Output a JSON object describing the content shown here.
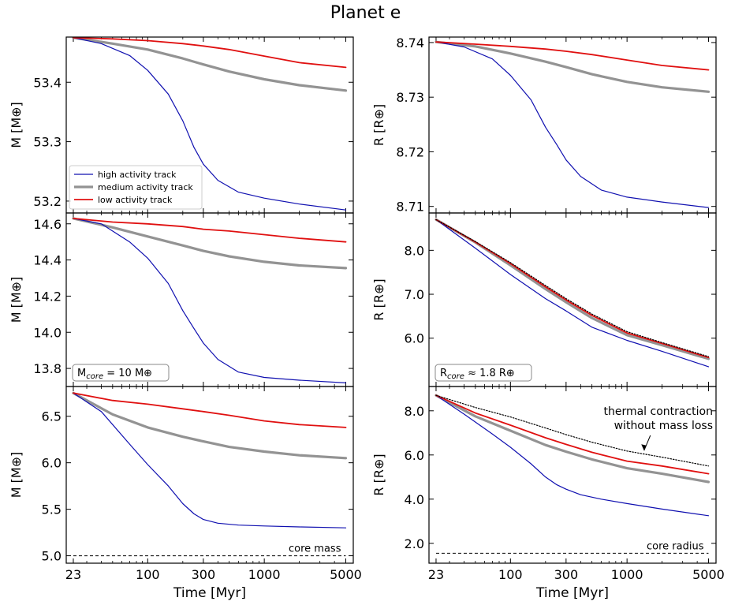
{
  "figure": {
    "title": "Planet e"
  },
  "colors": {
    "high": "#1010b0",
    "medium": "#939393",
    "low": "#e01010",
    "reference": "#000000"
  },
  "chart_data": [
    {
      "id": "mass-total",
      "type": "line",
      "xscale": "log",
      "xlabel": "",
      "ylabel": "M [M⊕]",
      "xlim": [
        20,
        5800
      ],
      "ylim": [
        53.18,
        53.476
      ],
      "xticks": [
        23,
        100,
        300,
        1000,
        5000
      ],
      "xticklabels": [
        "",
        "",
        "",
        "",
        ""
      ],
      "yticks": [
        53.2,
        53.3,
        53.4
      ],
      "yticklabels": [
        "53.2",
        "53.3",
        "53.4"
      ],
      "legend": {
        "placement": "lower-left",
        "entries": [
          "high activity track",
          "medium activity track",
          "low activity track"
        ]
      },
      "series": [
        {
          "name": "high activity track",
          "key": "high",
          "x": [
            23,
            40,
            70,
            100,
            150,
            200,
            250,
            300,
            400,
            600,
            1000,
            2000,
            5000
          ],
          "y": [
            53.475,
            53.465,
            53.445,
            53.42,
            53.38,
            53.335,
            53.29,
            53.262,
            53.235,
            53.215,
            53.205,
            53.195,
            53.185
          ]
        },
        {
          "name": "medium activity track",
          "key": "medium",
          "x": [
            23,
            50,
            100,
            200,
            300,
            500,
            1000,
            2000,
            5000
          ],
          "y": [
            53.475,
            53.465,
            53.455,
            53.44,
            53.43,
            53.418,
            53.405,
            53.395,
            53.386
          ]
        },
        {
          "name": "low activity track",
          "key": "low",
          "x": [
            23,
            50,
            100,
            200,
            300,
            500,
            1000,
            2000,
            5000
          ],
          "y": [
            53.475,
            53.473,
            53.47,
            53.465,
            53.461,
            53.455,
            53.444,
            53.433,
            53.425
          ]
        }
      ]
    },
    {
      "id": "radius-total",
      "type": "line",
      "xscale": "log",
      "xlabel": "",
      "ylabel": "R [R⊕]",
      "xlim": [
        20,
        5800
      ],
      "ylim": [
        8.7088,
        8.741
      ],
      "xticks": [
        23,
        100,
        300,
        1000,
        5000
      ],
      "xticklabels": [
        "",
        "",
        "",
        "",
        ""
      ],
      "yticks": [
        8.71,
        8.72,
        8.73,
        8.74
      ],
      "yticklabels": [
        "8.71",
        "8.72",
        "8.73",
        "8.74"
      ],
      "series": [
        {
          "key": "high",
          "x": [
            23,
            40,
            70,
            100,
            150,
            200,
            250,
            300,
            400,
            600,
            1000,
            2000,
            5000
          ],
          "y": [
            8.7401,
            8.7392,
            8.737,
            8.734,
            8.7295,
            8.7245,
            8.7213,
            8.7185,
            8.7155,
            8.713,
            8.7117,
            8.7108,
            8.7098
          ]
        },
        {
          "key": "medium",
          "x": [
            23,
            50,
            100,
            200,
            300,
            500,
            1000,
            2000,
            5000
          ],
          "y": [
            8.7401,
            8.7393,
            8.738,
            8.7365,
            8.7355,
            8.7342,
            8.7328,
            8.7318,
            8.731
          ]
        },
        {
          "key": "low",
          "x": [
            23,
            50,
            100,
            200,
            300,
            500,
            1000,
            2000,
            5000
          ],
          "y": [
            8.7401,
            8.7397,
            8.7393,
            8.7388,
            8.7384,
            8.7378,
            8.7368,
            8.7358,
            8.735
          ]
        }
      ]
    },
    {
      "id": "mass-10",
      "type": "line",
      "xscale": "log",
      "xlabel": "",
      "ylabel": "M [M⊕]",
      "xlim": [
        20,
        5800
      ],
      "ylim": [
        13.7,
        14.66
      ],
      "xticks": [
        23,
        100,
        300,
        1000,
        5000
      ],
      "xticklabels": [
        "",
        "",
        "",
        "",
        ""
      ],
      "yticks": [
        13.8,
        14.0,
        14.2,
        14.4,
        14.6
      ],
      "yticklabels": [
        "13.8",
        "14.0",
        "14.2",
        "14.4",
        "14.6"
      ],
      "annotation_box": {
        "text": "M",
        "sub": "core",
        "rest": " = 10 M⊕"
      },
      "series": [
        {
          "key": "high",
          "x": [
            23,
            40,
            70,
            100,
            150,
            200,
            250,
            300,
            400,
            600,
            1000,
            2000,
            5000
          ],
          "y": [
            14.63,
            14.6,
            14.5,
            14.41,
            14.27,
            14.12,
            14.02,
            13.94,
            13.85,
            13.78,
            13.75,
            13.735,
            13.72
          ]
        },
        {
          "key": "medium",
          "x": [
            23,
            50,
            100,
            200,
            300,
            500,
            1000,
            2000,
            5000
          ],
          "y": [
            14.63,
            14.58,
            14.53,
            14.48,
            14.45,
            14.42,
            14.39,
            14.37,
            14.355
          ]
        },
        {
          "key": "low",
          "x": [
            23,
            50,
            100,
            200,
            300,
            500,
            1000,
            2000,
            5000
          ],
          "y": [
            14.63,
            14.61,
            14.6,
            14.585,
            14.57,
            14.56,
            14.54,
            14.52,
            14.5
          ]
        }
      ]
    },
    {
      "id": "radius-10",
      "type": "line",
      "xscale": "log",
      "xlabel": "",
      "ylabel": "R [R⊕]",
      "xlim": [
        20,
        5800
      ],
      "ylim": [
        4.9,
        8.85
      ],
      "xticks": [
        23,
        100,
        300,
        1000,
        5000
      ],
      "xticklabels": [
        "",
        "",
        "",
        "",
        ""
      ],
      "yticks": [
        6.0,
        7.0,
        8.0
      ],
      "yticklabels": [
        "6.0",
        "7.0",
        "8.0"
      ],
      "annotation_box": {
        "text": "R",
        "sub": "core",
        "rest": " ≈ 1.8 R⊕"
      },
      "series": [
        {
          "key": "reference",
          "style": "dotted",
          "x": [
            23,
            50,
            100,
            200,
            300,
            500,
            1000,
            2000,
            5000
          ],
          "y": [
            8.7,
            8.2,
            7.72,
            7.2,
            6.9,
            6.55,
            6.15,
            5.9,
            5.58
          ]
        },
        {
          "key": "high",
          "x": [
            23,
            50,
            100,
            200,
            300,
            500,
            1000,
            2000,
            5000
          ],
          "y": [
            8.7,
            8.05,
            7.45,
            6.9,
            6.62,
            6.25,
            5.95,
            5.7,
            5.35
          ]
        },
        {
          "key": "medium",
          "x": [
            23,
            50,
            100,
            200,
            300,
            500,
            1000,
            2000,
            5000
          ],
          "y": [
            8.7,
            8.18,
            7.66,
            7.12,
            6.82,
            6.46,
            6.07,
            5.84,
            5.53
          ]
        },
        {
          "key": "low",
          "x": [
            23,
            50,
            100,
            200,
            300,
            500,
            1000,
            2000,
            5000
          ],
          "y": [
            8.7,
            8.19,
            7.7,
            7.17,
            6.87,
            6.52,
            6.12,
            5.88,
            5.56
          ]
        }
      ]
    },
    {
      "id": "mass-5",
      "type": "line",
      "xscale": "log",
      "xlabel": "Time [Myr]",
      "ylabel": "M [M⊕]",
      "xlim": [
        20,
        5800
      ],
      "ylim": [
        4.92,
        6.82
      ],
      "xticks": [
        23,
        100,
        300,
        1000,
        5000
      ],
      "xticklabels": [
        "23",
        "100",
        "300",
        "1000",
        "5000"
      ],
      "yticks": [
        5.0,
        5.5,
        6.0,
        6.5
      ],
      "yticklabels": [
        "5.0",
        "5.5",
        "6.0",
        "6.5"
      ],
      "reference_line": {
        "y": 5.0,
        "label": "core mass"
      },
      "series": [
        {
          "key": "high",
          "x": [
            23,
            40,
            70,
            100,
            150,
            200,
            250,
            300,
            400,
            600,
            1000,
            2000,
            5000
          ],
          "y": [
            6.75,
            6.55,
            6.2,
            5.98,
            5.75,
            5.56,
            5.45,
            5.39,
            5.35,
            5.33,
            5.32,
            5.31,
            5.3
          ]
        },
        {
          "key": "medium",
          "x": [
            23,
            50,
            100,
            200,
            300,
            500,
            1000,
            2000,
            5000
          ],
          "y": [
            6.75,
            6.52,
            6.38,
            6.28,
            6.23,
            6.17,
            6.12,
            6.08,
            6.05
          ]
        },
        {
          "key": "low",
          "x": [
            23,
            50,
            100,
            200,
            300,
            500,
            1000,
            2000,
            5000
          ],
          "y": [
            6.75,
            6.67,
            6.63,
            6.58,
            6.55,
            6.51,
            6.45,
            6.41,
            6.38
          ]
        }
      ]
    },
    {
      "id": "radius-5",
      "type": "line",
      "xscale": "log",
      "xlabel": "Time [Myr]",
      "ylabel": "R [R⊕]",
      "xlim": [
        20,
        5800
      ],
      "ylim": [
        1.1,
        9.1
      ],
      "xticks": [
        23,
        100,
        300,
        1000,
        5000
      ],
      "xticklabels": [
        "23",
        "100",
        "300",
        "1000",
        "5000"
      ],
      "yticks": [
        2.0,
        4.0,
        6.0,
        8.0
      ],
      "yticklabels": [
        "2.0",
        "4.0",
        "6.0",
        "8.0"
      ],
      "reference_line": {
        "y": 1.55,
        "label": "core radius"
      },
      "text_annotation": {
        "lines": [
          "thermal contraction",
          "without mass loss"
        ],
        "arrow_to": {
          "x": 1400,
          "y": 6.2
        }
      },
      "series": [
        {
          "key": "reference",
          "style": "dotted",
          "x": [
            23,
            50,
            100,
            200,
            300,
            500,
            1000,
            2000,
            5000
          ],
          "y": [
            8.7,
            8.15,
            7.72,
            7.22,
            6.92,
            6.58,
            6.18,
            5.9,
            5.5
          ]
        },
        {
          "key": "high",
          "x": [
            23,
            40,
            70,
            100,
            150,
            200,
            250,
            300,
            400,
            600,
            1000,
            2000,
            5000
          ],
          "y": [
            8.7,
            7.85,
            6.95,
            6.35,
            5.6,
            5.0,
            4.65,
            4.45,
            4.2,
            4.0,
            3.8,
            3.55,
            3.25
          ]
        },
        {
          "key": "medium",
          "x": [
            23,
            50,
            100,
            200,
            300,
            500,
            1000,
            2000,
            5000
          ],
          "y": [
            8.7,
            7.75,
            7.1,
            6.45,
            6.15,
            5.8,
            5.4,
            5.15,
            4.78
          ]
        },
        {
          "key": "low",
          "x": [
            23,
            50,
            100,
            200,
            300,
            500,
            1000,
            2000,
            5000
          ],
          "y": [
            8.7,
            7.9,
            7.35,
            6.78,
            6.48,
            6.12,
            5.72,
            5.5,
            5.15
          ]
        }
      ]
    }
  ]
}
